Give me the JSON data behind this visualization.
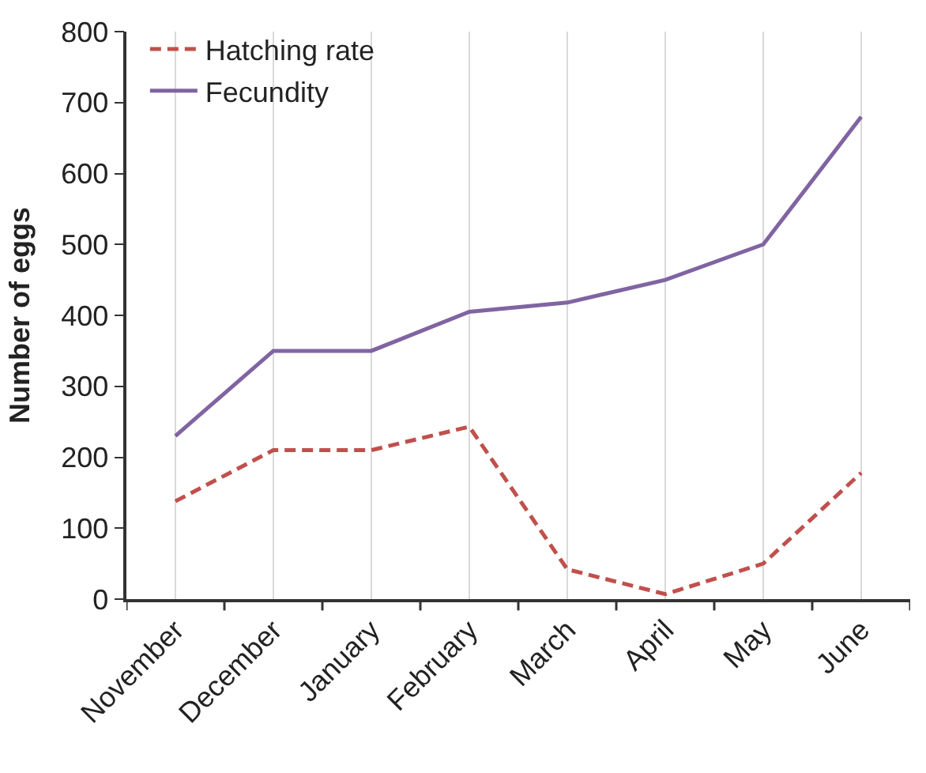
{
  "chart_data": {
    "type": "line",
    "ylabel": "Number of eggs",
    "categories": [
      "November",
      "December",
      "January",
      "February",
      "March",
      "April",
      "May",
      "June"
    ],
    "series": [
      {
        "name": "Hatching rate",
        "color": "#c0504d",
        "line_style": "dashed",
        "values": [
          138,
          210,
          210,
          243,
          42,
          7,
          50,
          178
        ]
      },
      {
        "name": "Fecundity",
        "color": "#8064a2",
        "line_style": "solid",
        "values": [
          230,
          350,
          350,
          405,
          418,
          450,
          500,
          680
        ]
      }
    ],
    "ylim": [
      0,
      800
    ],
    "yticks": [
      0,
      100,
      200,
      300,
      400,
      500,
      600,
      700,
      800
    ],
    "grid": "x",
    "legend": "top left",
    "marker": "none"
  }
}
